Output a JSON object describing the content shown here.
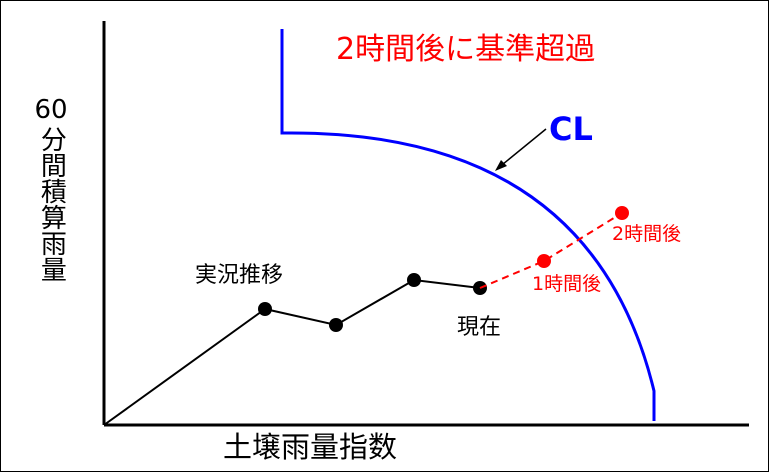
{
  "title": "2時間後に基準超過",
  "cl_label": "CL",
  "y_axis_label": {
    "top": "60",
    "vertical": "分間積算雨量"
  },
  "x_axis_label": "土壌雨量指数",
  "point_labels": {
    "trend": "実況推移",
    "current": "現在",
    "one_hour": "1時間後",
    "two_hour": "2時間後"
  },
  "colors": {
    "title": "#ff0000",
    "cl_line": "#0000ff",
    "observed": "#000000",
    "forecast": "#ff0000",
    "forecast_labels": "#ff0000"
  }
}
